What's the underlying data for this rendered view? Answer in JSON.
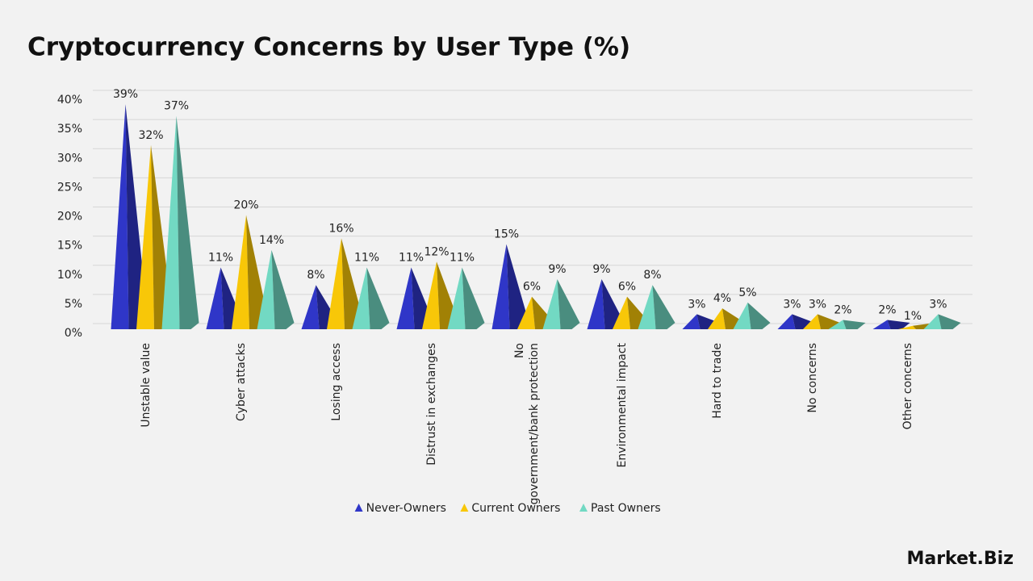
{
  "chart_data": {
    "type": "pyramid-bar",
    "title": "Cryptocurrency Concerns by User Type (%)",
    "categories": [
      "Unstable value",
      "Cyber attacks",
      "Losing access",
      "Distrust in exchanges",
      "No government/bank protection",
      "Environmental impact",
      "Hard to trade",
      "No concerns",
      "Other concerns"
    ],
    "series": [
      {
        "name": "Never-Owners",
        "color": "#2f36c8",
        "values": [
          39,
          11,
          8,
          11,
          15,
          9,
          3,
          3,
          2
        ],
        "value_labels": [
          "39%",
          "11%",
          "8%",
          "11%",
          "15%",
          "9%",
          "3%",
          "3%",
          "2%"
        ]
      },
      {
        "name": "Current Owners",
        "color": "#f8c708",
        "values": [
          32,
          20,
          16,
          12,
          6,
          6,
          4,
          3,
          1
        ],
        "value_labels": [
          "32%",
          "20%",
          "16%",
          "12%",
          "6%",
          "6%",
          "4%",
          "3%",
          "1%"
        ]
      },
      {
        "name": "Past Owners",
        "color": "#72d9c3",
        "values": [
          37,
          14,
          11,
          11,
          9,
          8,
          5,
          2,
          3
        ],
        "value_labels": [
          "37%",
          "14%",
          "11%",
          "11%",
          "9%",
          "8%",
          "5%",
          "2%",
          "3%"
        ]
      }
    ],
    "ylim": [
      0,
      40
    ],
    "yticks": [
      {
        "value": 0,
        "label": "0%"
      },
      {
        "value": 5,
        "label": "5%"
      },
      {
        "value": 10,
        "label": "10%"
      },
      {
        "value": 15,
        "label": "15%"
      },
      {
        "value": 20,
        "label": "20%"
      },
      {
        "value": 25,
        "label": "25%"
      },
      {
        "value": 30,
        "label": "30%"
      },
      {
        "value": 35,
        "label": "35%"
      },
      {
        "value": 40,
        "label": "40%"
      }
    ],
    "grid": true,
    "legend": "bottom"
  },
  "brand": "Market.Biz"
}
